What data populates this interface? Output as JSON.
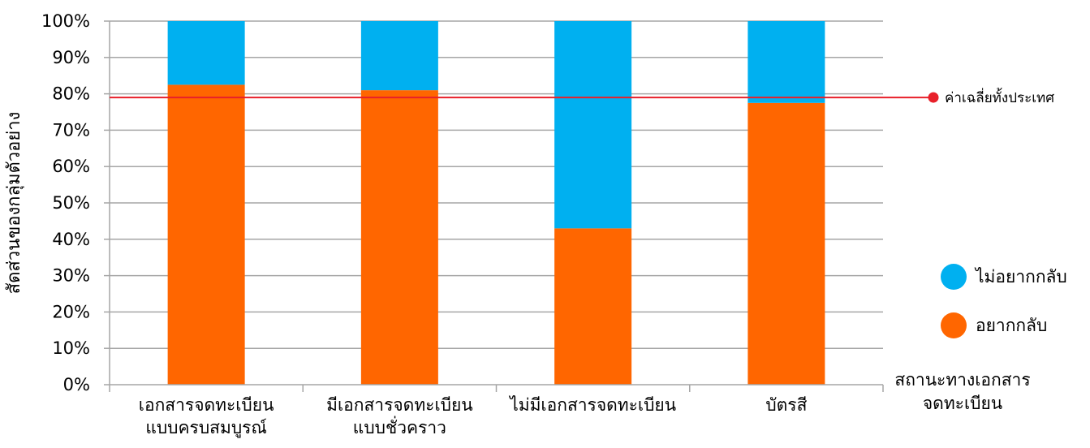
{
  "chart_data": {
    "type": "bar",
    "stacked": true,
    "ylabel": "สัดส่วนของกลุ่มตัวอย่าง",
    "xlabel": [
      "สถานะทางเอกสาร",
      "จดทะเบียน"
    ],
    "ylim": [
      0,
      100
    ],
    "yticks": [
      0,
      10,
      20,
      30,
      40,
      50,
      60,
      70,
      80,
      90,
      100
    ],
    "ytick_labels": [
      "0%",
      "10%",
      "20%",
      "30%",
      "40%",
      "50%",
      "60%",
      "70%",
      "80%",
      "90%",
      "100%"
    ],
    "categories": [
      [
        "เอกสารจดทะเบียน",
        "แบบครบสมบูรณ์"
      ],
      [
        "มีเอกสารจดทะเบียน",
        "แบบชั่วคราว"
      ],
      [
        "ไม่มีเอกสารจดทะเบียน"
      ],
      [
        "บัตรสี"
      ]
    ],
    "series": [
      {
        "name": "อยากกลับ",
        "color": "#ff6600",
        "values": [
          82.5,
          81,
          43,
          77.5
        ]
      },
      {
        "name": "ไม่อยากกลับ",
        "color": "#00b0f0",
        "values": [
          17.5,
          19,
          57,
          22.5
        ]
      }
    ],
    "legend_order": [
      "ไม่อยากกลับ",
      "อยากกลับ"
    ],
    "legend_position": "right",
    "reference_line": {
      "label": "ค่าเฉลี่ยทั้งประเทศ",
      "value": 79,
      "color": "#e8202a"
    },
    "grid": true,
    "grid_color": "#a6a6a6"
  }
}
